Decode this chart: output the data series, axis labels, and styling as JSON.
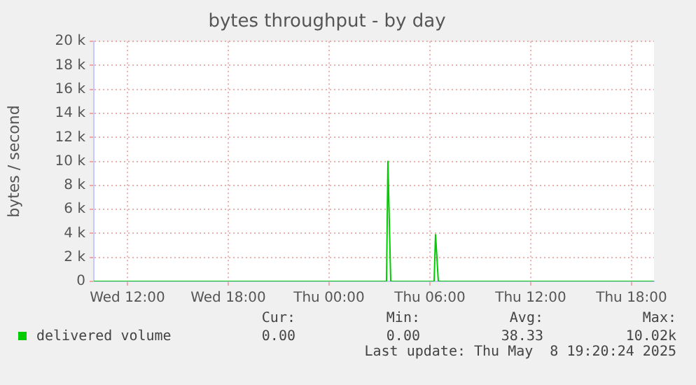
{
  "chart_data": {
    "type": "line",
    "title": "bytes throughput - by day",
    "ylabel": "bytes / second",
    "x": [
      "2025-05-07T10:00",
      "2025-05-08T03:25",
      "2025-05-08T03:30",
      "2025-05-08T03:40",
      "2025-05-08T06:15",
      "2025-05-08T06:20",
      "2025-05-08T06:30",
      "2025-05-08T19:20"
    ],
    "series": [
      {
        "name": "delivered volume",
        "color": "#00cc00",
        "values": [
          0,
          0,
          10000,
          0,
          0,
          3900,
          0,
          0
        ]
      }
    ],
    "xlim": [
      "2025-05-07T10:00",
      "2025-05-08T19:20"
    ],
    "xticks": [
      {
        "value": "2025-05-07T12:00",
        "label": "Wed 12:00"
      },
      {
        "value": "2025-05-07T18:00",
        "label": "Wed 18:00"
      },
      {
        "value": "2025-05-08T00:00",
        "label": "Thu 00:00"
      },
      {
        "value": "2025-05-08T06:00",
        "label": "Thu 06:00"
      },
      {
        "value": "2025-05-08T12:00",
        "label": "Thu 12:00"
      },
      {
        "value": "2025-05-08T18:00",
        "label": "Thu 18:00"
      }
    ],
    "ylim": [
      0,
      20000
    ],
    "yticks": [
      0,
      {
        "value": 2000,
        "label": "2 k"
      },
      {
        "value": 4000,
        "label": "4 k"
      },
      {
        "value": 6000,
        "label": "6 k"
      },
      {
        "value": 8000,
        "label": "8 k"
      },
      {
        "value": 10000,
        "label": "10 k"
      },
      {
        "value": 12000,
        "label": "12 k"
      },
      {
        "value": 14000,
        "label": "14 k"
      },
      {
        "value": 16000,
        "label": "16 k"
      },
      {
        "value": 18000,
        "label": "18 k"
      },
      {
        "value": 20000,
        "label": "20 k"
      }
    ],
    "grid": true,
    "legend": "bottom left",
    "marker": "none",
    "line_style": "solid",
    "annotations": [
      "Cur:",
      "Min:",
      "Avg:",
      "Max:",
      "0.00",
      "0.00",
      "38.33",
      "10.02k",
      "Last update: Thu May  8 19:20:24 2025"
    ]
  }
}
